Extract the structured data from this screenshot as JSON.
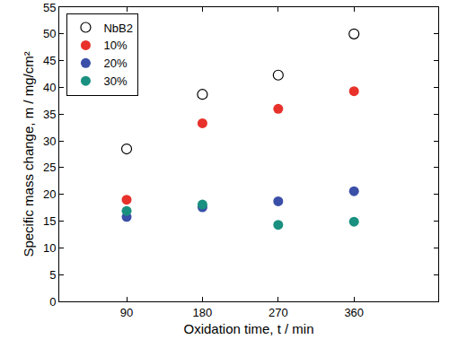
{
  "chart_data": {
    "type": "scatter",
    "x_label": "Oxidation time, t / min",
    "y_label": "Specific mass change, m / mg/cm²",
    "x": [
      90,
      180,
      270,
      360
    ],
    "series": [
      {
        "name": "NbB2",
        "color": "#000000",
        "marker": "open circle",
        "values": [
          28.5,
          38.7,
          42.3,
          50.0
        ]
      },
      {
        "name": "10%",
        "color": "#e8312b",
        "marker": "circle",
        "values": [
          19.0,
          33.3,
          36.0,
          39.3
        ]
      },
      {
        "name": "20%",
        "color": "#3a4fa8",
        "marker": "circle",
        "values": [
          15.8,
          17.6,
          18.7,
          20.6
        ]
      },
      {
        "name": "30%",
        "color": "#1a9080",
        "marker": "circle",
        "values": [
          16.9,
          18.1,
          14.3,
          14.9
        ]
      }
    ],
    "xlim": [
      10,
      460
    ],
    "xticks": [
      90,
      180,
      270,
      360
    ],
    "ylim": [
      0,
      55
    ],
    "yticks": [
      0,
      5,
      10,
      15,
      20,
      25,
      30,
      35,
      40,
      45,
      50,
      55
    ],
    "grid": false,
    "legend": "upper left"
  }
}
